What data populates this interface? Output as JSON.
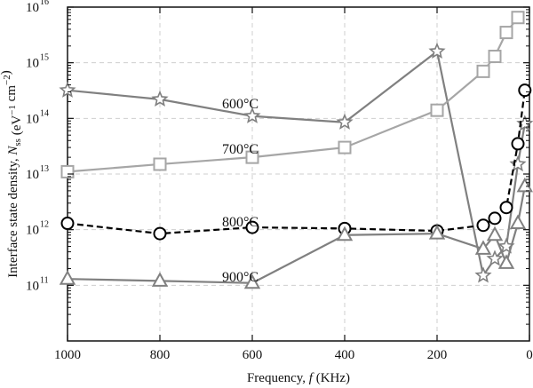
{
  "chart_data": {
    "type": "line",
    "xlabel": "Frequency, f (KHz)",
    "ylabel": "Interface state density, N_ss (eV^-1 cm^-2)",
    "xlim": [
      1000,
      0
    ],
    "ylim": [
      10000000000.0,
      1e+16
    ],
    "yscale": "log",
    "grid": true,
    "x_ticks": [
      1000,
      800,
      600,
      400,
      200,
      0
    ],
    "x_tick_labels": [
      "1000",
      "800",
      "600",
      "400",
      "200",
      "0"
    ],
    "y_ticks": [
      100000000000.0,
      1000000000000.0,
      10000000000000.0,
      100000000000000.0,
      1000000000000000.0,
      1e+16
    ],
    "y_tick_labels": [
      {
        "base": "10",
        "exp": "11"
      },
      {
        "base": "10",
        "exp": "12"
      },
      {
        "base": "10",
        "exp": "13"
      },
      {
        "base": "10",
        "exp": "14"
      },
      {
        "base": "10",
        "exp": "15"
      },
      {
        "base": "10",
        "exp": "16"
      }
    ],
    "series": [
      {
        "name": "600°C",
        "marker": "star",
        "line": "solid",
        "color": "#808080",
        "x": [
          1000,
          800,
          600,
          400,
          200,
          100,
          75,
          50,
          25,
          10
        ],
        "y": [
          320000000000000.0,
          220000000000000.0,
          110000000000000.0,
          85000000000000.0,
          1600000000000000.0,
          150000000000.0,
          300000000000.0,
          500000000000.0,
          15000000000000.0,
          80000000000000.0
        ]
      },
      {
        "name": "700°C",
        "marker": "square",
        "line": "solid",
        "color": "#a6a6a6",
        "x": [
          1000,
          800,
          600,
          400,
          200,
          100,
          75,
          50,
          25
        ],
        "y": [
          11000000000000.0,
          15000000000000.0,
          20000000000000.0,
          30000000000000.0,
          140000000000000.0,
          700000000000000.0,
          1300000000000000.0,
          3500000000000000.0,
          6500000000000000.0
        ]
      },
      {
        "name": "800°C",
        "marker": "circle",
        "line": "dashed",
        "color": "#000000",
        "x": [
          1000,
          800,
          600,
          400,
          200,
          100,
          75,
          50,
          25,
          10
        ],
        "y": [
          1300000000000.0,
          850000000000.0,
          1100000000000.0,
          1050000000000.0,
          950000000000.0,
          1200000000000.0,
          1600000000000.0,
          2500000000000.0,
          35000000000000.0,
          320000000000000.0
        ]
      },
      {
        "name": "900°C",
        "marker": "triangle",
        "line": "solid",
        "color": "#808080",
        "x": [
          1000,
          800,
          600,
          400,
          200,
          100,
          75,
          50,
          25,
          10
        ],
        "y": [
          130000000000.0,
          120000000000.0,
          110000000000.0,
          800000000000.0,
          850000000000.0,
          450000000000.0,
          800000000000.0,
          250000000000.0,
          1300000000000.0,
          6000000000000.0
        ]
      }
    ]
  }
}
